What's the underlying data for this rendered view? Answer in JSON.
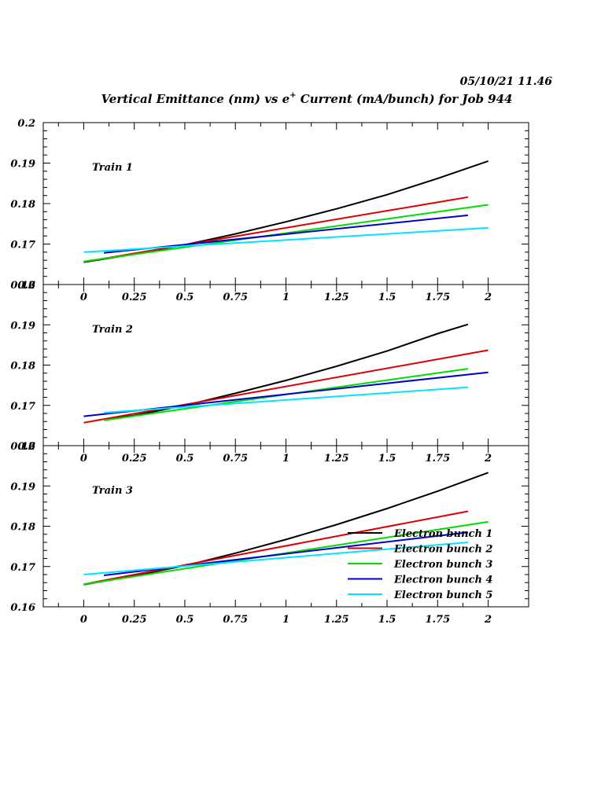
{
  "timestamp": "05/10/21   11.46",
  "title_main": "Vertical Emittance (nm) vs e",
  "title_sup": "+",
  "title_rest": " Current (mA/bunch) for Job 944",
  "chart_data": {
    "type": "line",
    "xlim": [
      -0.2,
      2.2
    ],
    "ylim": [
      0.16,
      0.2
    ],
    "x_ticks": [
      "0",
      "0.25",
      "0.5",
      "0.75",
      "1",
      "1.25",
      "1.5",
      "1.75",
      "2"
    ],
    "y_ticks": [
      "0.16",
      "0.17",
      "0.18",
      "0.19",
      "0.2"
    ],
    "colors": {
      "Electron bunch 1": "#000000",
      "Electron bunch 2": "#dd0000",
      "Electron bunch 3": "#00dd00",
      "Electron bunch 4": "#0000cc",
      "Electron bunch 5": "#00e5ff"
    },
    "panels": [
      {
        "label": "Train 1",
        "series": [
          {
            "name": "Electron bunch 1",
            "x": [
              0,
              0.25,
              0.5,
              0.75,
              1,
              1.25,
              1.5,
              1.75,
              2
            ],
            "y": [
              0.1655,
              0.1675,
              0.1698,
              0.1725,
              0.1755,
              0.1787,
              0.1822,
              0.1862,
              0.1905
            ]
          },
          {
            "name": "Electron bunch 2",
            "x": [
              0,
              1.9
            ],
            "y": [
              0.1656,
              0.1816
            ]
          },
          {
            "name": "Electron bunch 3",
            "x": [
              0,
              2
            ],
            "y": [
              0.1657,
              0.1797
            ]
          },
          {
            "name": "Electron bunch 4",
            "x": [
              0.1,
              1.9
            ],
            "y": [
              0.1678,
              0.1771
            ]
          },
          {
            "name": "Electron bunch 5",
            "x": [
              0,
              2
            ],
            "y": [
              0.168,
              0.174
            ]
          }
        ]
      },
      {
        "label": "Train 2",
        "series": [
          {
            "name": "Electron bunch 1",
            "x": [
              0.1,
              0.25,
              0.5,
              0.75,
              1,
              1.25,
              1.5,
              1.75,
              1.9
            ],
            "y": [
              0.1665,
              0.1675,
              0.17,
              0.173,
              0.1762,
              0.1797,
              0.1835,
              0.1878,
              0.1901
            ]
          },
          {
            "name": "Electron bunch 2",
            "x": [
              0,
              2
            ],
            "y": [
              0.1657,
              0.1837
            ]
          },
          {
            "name": "Electron bunch 3",
            "x": [
              0.1,
              1.9
            ],
            "y": [
              0.1663,
              0.1791
            ]
          },
          {
            "name": "Electron bunch 4",
            "x": [
              0,
              2
            ],
            "y": [
              0.1673,
              0.1782
            ]
          },
          {
            "name": "Electron bunch 5",
            "x": [
              0.1,
              1.9
            ],
            "y": [
              0.1682,
              0.1745
            ]
          }
        ]
      },
      {
        "label": "Train 3",
        "series": [
          {
            "name": "Electron bunch 1",
            "x": [
              0,
              0.25,
              0.5,
              0.75,
              1,
              1.25,
              1.5,
              1.75,
              2
            ],
            "y": [
              0.1655,
              0.1677,
              0.1702,
              0.1733,
              0.1767,
              0.1804,
              0.1844,
              0.1887,
              0.1933
            ]
          },
          {
            "name": "Electron bunch 2",
            "x": [
              0,
              1.9
            ],
            "y": [
              0.1656,
              0.1837
            ]
          },
          {
            "name": "Electron bunch 3",
            "x": [
              0,
              2
            ],
            "y": [
              0.1656,
              0.1811
            ]
          },
          {
            "name": "Electron bunch 4",
            "x": [
              0.1,
              1.9
            ],
            "y": [
              0.1678,
              0.1785
            ]
          },
          {
            "name": "Electron bunch 5",
            "x": [
              0,
              1.9
            ],
            "y": [
              0.168,
              0.176
            ]
          }
        ]
      }
    ],
    "legend": {
      "placement": "bottom-right of Train 3",
      "entries": [
        "Electron bunch 1",
        "Electron bunch 2",
        "Electron bunch 3",
        "Electron bunch 4",
        "Electron bunch 5"
      ]
    }
  }
}
